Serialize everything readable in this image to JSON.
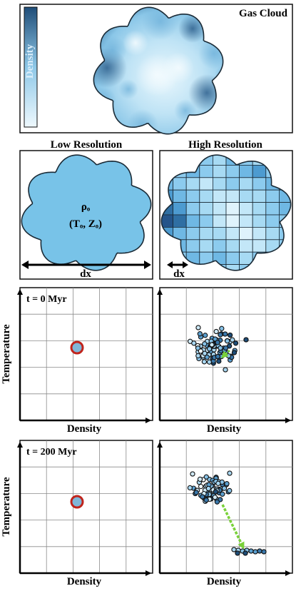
{
  "top_panel": {
    "title": "Gas Cloud",
    "colorbar_label": "Density"
  },
  "resolution_panels": {
    "low": {
      "title": "Low Resolution",
      "symbol_rho": "ρₒ",
      "symbol_tz": "(Tₒ, Zₒ)",
      "scale_label": "dx"
    },
    "high": {
      "title": "High Resolution",
      "scale_label": "dx"
    }
  },
  "phase_rows": [
    {
      "time_label": "t = 0 Myr",
      "ylabel": "Temperature",
      "xlabel_left": "Density",
      "xlabel_right": "Density"
    },
    {
      "time_label": "t = 200 Myr",
      "ylabel": "Temperature",
      "xlabel_left": "Density",
      "xlabel_right": "Density"
    }
  ],
  "colors": {
    "cloud_light": "#e6f6fd",
    "cloud_mid": "#9fd3ef",
    "cloud_dark": "#1f4e79",
    "low_res_fill": "#78c3e8",
    "marker_ring": "#c0241c",
    "marker_fill": "#7fb6d8",
    "arrow_green": "#7ad13a"
  }
}
